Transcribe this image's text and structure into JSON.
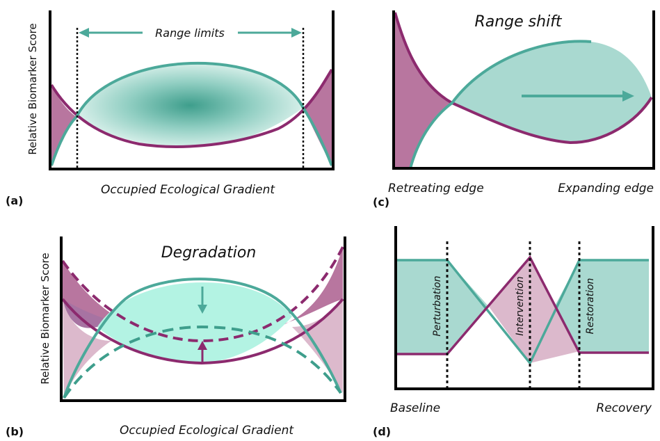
{
  "colors": {
    "teal": "#4ca99a",
    "teal_fill": "#a9d9d0",
    "teal_fill_light": "#d6efe9",
    "teal_dark": "#3e9e8c",
    "purple": "#8c2a6e",
    "purple_fill": "#b8769f",
    "purple_fill_light": "#dcb9cc",
    "mint": "#b3f3e3",
    "axis": "#000000"
  },
  "panel_a": {
    "letter": "(a)",
    "ylabel": "Relative Biomarker Score",
    "xlabel": "Occupied Ecological Gradient",
    "annotation": "Range limits"
  },
  "panel_b": {
    "letter": "(b)",
    "ylabel": "Relative Biomarker Score",
    "xlabel": "Occupied Ecological Gradient",
    "title": "Degradation"
  },
  "panel_c": {
    "letter": "(c)",
    "title": "Range shift",
    "left_label": "Retreating edge",
    "right_label": "Expanding edge"
  },
  "panel_d": {
    "letter": "(d)",
    "left_label": "Baseline",
    "right_label": "Recovery",
    "stages": [
      "Perturbation",
      "Intervention",
      "Restoration"
    ]
  }
}
